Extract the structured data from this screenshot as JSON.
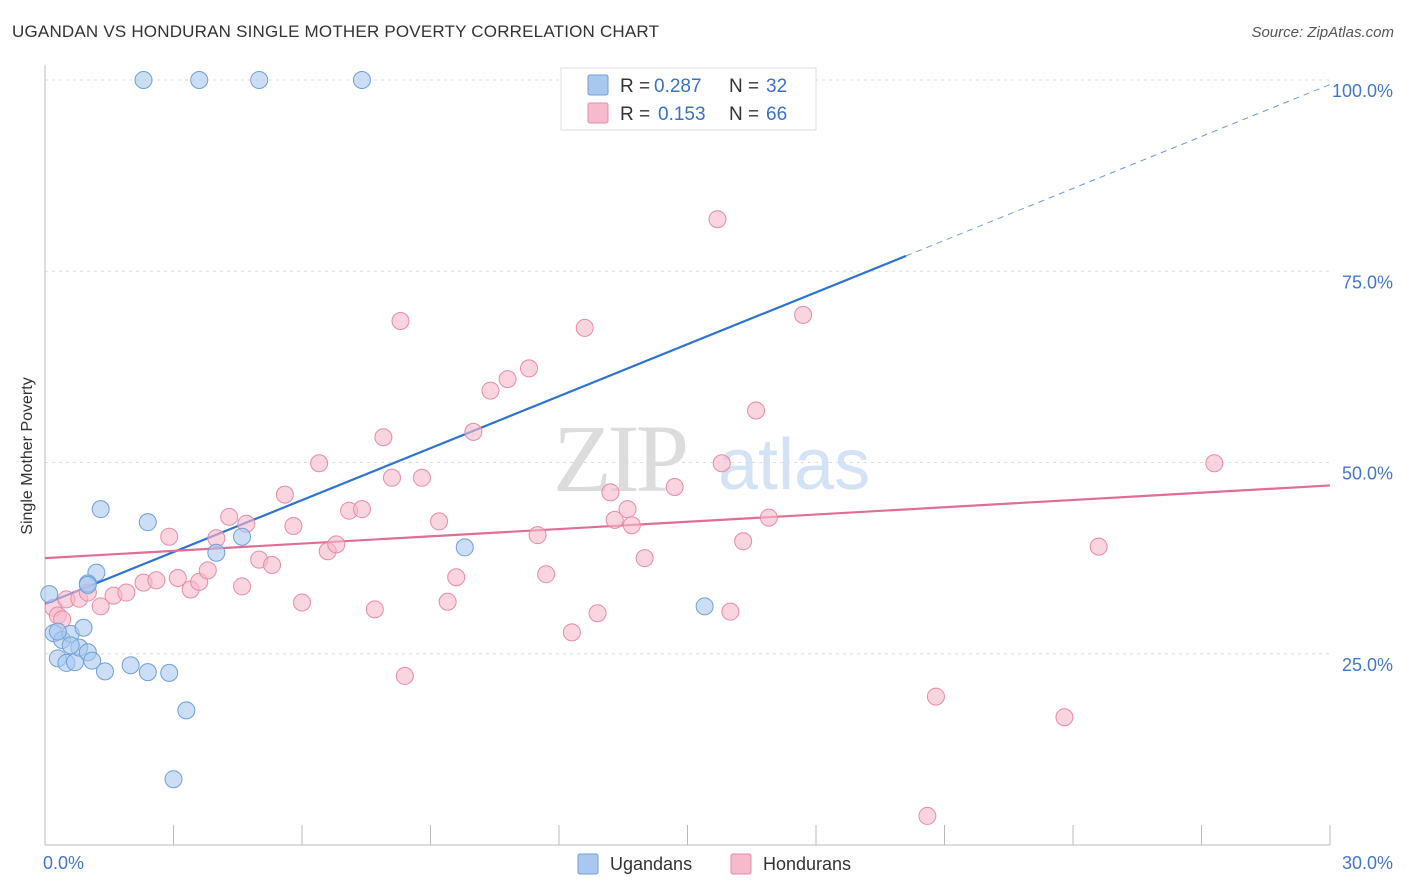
{
  "title": "UGANDAN VS HONDURAN SINGLE MOTHER POVERTY CORRELATION CHART",
  "source": "Source: ZipAtlas.com",
  "watermark": {
    "zip": "ZIP",
    "atlas": "atlas"
  },
  "colors": {
    "ugandan_fill": "#a9c8f0",
    "ugandan_stroke": "#6f9fdc",
    "ugandan_line": "#2f73d0",
    "honduran_fill": "#f7b9cc",
    "honduran_stroke": "#e98aa8",
    "honduran_line": "#e06e94",
    "axis_text": "#4477cc",
    "grid": "#dddddd"
  },
  "legend": {
    "rows": [
      {
        "r_label": "R = ",
        "r_value": "0.287",
        "n_label": "N = ",
        "n_value": "32"
      },
      {
        "r_label": "R = ",
        "r_value": "0.153",
        "n_label": "N = ",
        "n_value": "66"
      }
    ]
  },
  "chart_data": {
    "type": "scatter",
    "title": "UGANDAN VS HONDURAN SINGLE MOTHER POVERTY CORRELATION CHART",
    "xlabel": "",
    "ylabel": "Single Mother Poverty",
    "xlim": [
      0,
      30
    ],
    "ylim": [
      0,
      102
    ],
    "x_tick_labels": [
      "0.0%",
      "30.0%"
    ],
    "y_ticks": [
      25,
      50,
      75,
      100
    ],
    "y_tick_labels": [
      "25.0%",
      "50.0%",
      "75.0%",
      "100.0%"
    ],
    "grid": true,
    "legend_position": "top-center",
    "series": [
      {
        "name": "Ugandans",
        "r": 0.287,
        "n": 32,
        "trend": {
          "x0": 0,
          "y0": 31.5,
          "x1": 20.1,
          "y1": 77,
          "dashed_to_x": 30
        },
        "points": [
          [
            2.3,
            100
          ],
          [
            3.6,
            100
          ],
          [
            5.0,
            100
          ],
          [
            7.4,
            100
          ],
          [
            0.1,
            32.8
          ],
          [
            1.3,
            43.9
          ],
          [
            2.4,
            42.2
          ],
          [
            4.0,
            38.2
          ],
          [
            4.6,
            40.3
          ],
          [
            1.2,
            35.6
          ],
          [
            1.0,
            34.2
          ],
          [
            0.2,
            27.7
          ],
          [
            0.3,
            24.4
          ],
          [
            0.4,
            26.8
          ],
          [
            0.5,
            23.8
          ],
          [
            0.6,
            27.6
          ],
          [
            0.7,
            23.9
          ],
          [
            0.8,
            25.8
          ],
          [
            0.9,
            28.4
          ],
          [
            1.0,
            25.2
          ],
          [
            1.1,
            24.1
          ],
          [
            1.4,
            22.7
          ],
          [
            2.0,
            23.5
          ],
          [
            2.4,
            22.6
          ],
          [
            2.9,
            22.5
          ],
          [
            3.3,
            17.6
          ],
          [
            3.0,
            8.6
          ],
          [
            9.8,
            38.9
          ],
          [
            15.4,
            31.2
          ],
          [
            0.6,
            26.1
          ],
          [
            0.3,
            27.9
          ],
          [
            1.0,
            34.0
          ]
        ]
      },
      {
        "name": "Hondurans",
        "r": 0.153,
        "n": 66,
        "trend": {
          "x0": 0,
          "y0": 37.5,
          "x1": 30,
          "y1": 47
        },
        "points": [
          [
            0.2,
            31.0
          ],
          [
            0.3,
            30.0
          ],
          [
            0.5,
            32.1
          ],
          [
            0.8,
            32.2
          ],
          [
            1.0,
            33.0
          ],
          [
            1.3,
            31.2
          ],
          [
            1.6,
            32.6
          ],
          [
            1.9,
            33.0
          ],
          [
            2.3,
            34.3
          ],
          [
            2.6,
            34.6
          ],
          [
            2.9,
            40.3
          ],
          [
            3.1,
            34.9
          ],
          [
            3.4,
            33.4
          ],
          [
            3.6,
            34.4
          ],
          [
            3.8,
            35.9
          ],
          [
            4.0,
            40.1
          ],
          [
            4.3,
            42.9
          ],
          [
            4.6,
            33.8
          ],
          [
            4.7,
            42.0
          ],
          [
            5.0,
            37.3
          ],
          [
            5.3,
            36.6
          ],
          [
            5.6,
            45.8
          ],
          [
            5.8,
            41.7
          ],
          [
            6.0,
            31.7
          ],
          [
            6.4,
            49.9
          ],
          [
            6.6,
            38.4
          ],
          [
            6.8,
            39.3
          ],
          [
            7.1,
            43.7
          ],
          [
            7.4,
            43.9
          ],
          [
            7.7,
            30.8
          ],
          [
            7.9,
            53.3
          ],
          [
            8.1,
            48.0
          ],
          [
            8.3,
            68.5
          ],
          [
            8.4,
            22.1
          ],
          [
            8.8,
            48.0
          ],
          [
            9.2,
            42.3
          ],
          [
            9.4,
            31.8
          ],
          [
            9.6,
            35.0
          ],
          [
            10.0,
            54.0
          ],
          [
            10.4,
            59.4
          ],
          [
            10.8,
            60.9
          ],
          [
            11.3,
            62.3
          ],
          [
            11.5,
            40.5
          ],
          [
            11.7,
            35.4
          ],
          [
            12.3,
            27.8
          ],
          [
            12.6,
            67.6
          ],
          [
            12.9,
            30.3
          ],
          [
            13.2,
            46.1
          ],
          [
            13.3,
            42.5
          ],
          [
            13.6,
            43.9
          ],
          [
            13.7,
            41.8
          ],
          [
            14.0,
            37.5
          ],
          [
            14.7,
            46.8
          ],
          [
            15.7,
            81.8
          ],
          [
            15.8,
            49.9
          ],
          [
            16.0,
            30.5
          ],
          [
            16.3,
            39.7
          ],
          [
            16.6,
            56.8
          ],
          [
            16.9,
            42.8
          ],
          [
            17.7,
            69.3
          ],
          [
            20.8,
            19.4
          ],
          [
            20.6,
            3.8
          ],
          [
            23.8,
            16.7
          ],
          [
            24.6,
            39.0
          ],
          [
            27.3,
            49.9
          ],
          [
            0.4,
            29.5
          ]
        ]
      }
    ]
  },
  "bottom_legend": {
    "items": [
      "Ugandans",
      "Hondurans"
    ]
  }
}
